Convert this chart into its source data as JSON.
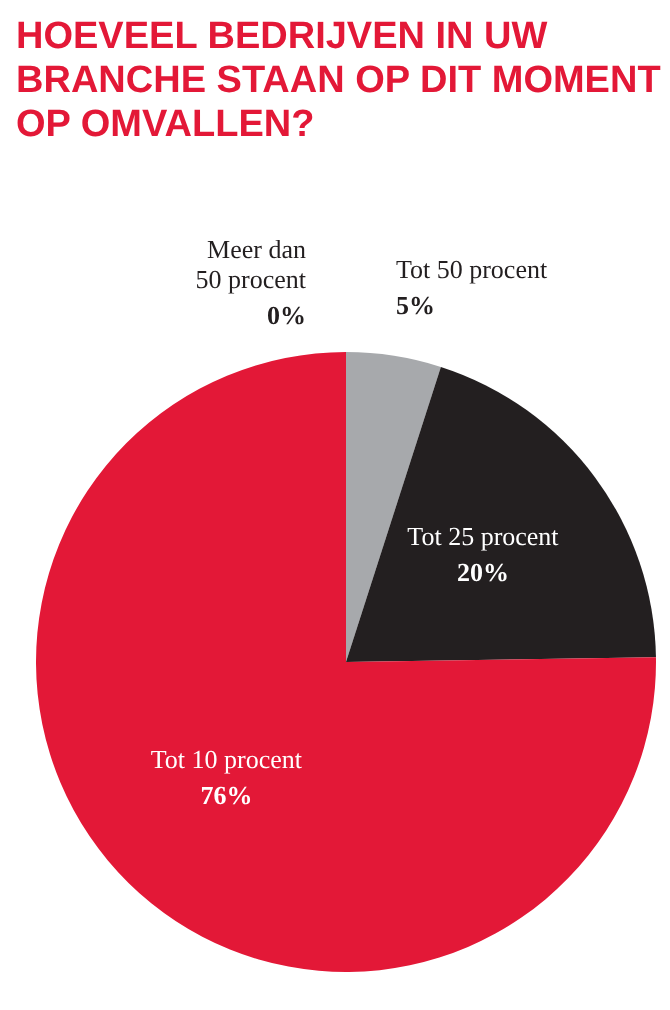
{
  "chart_data": {
    "type": "pie",
    "title": "HOEVEEL BEDRIJVEN IN UW BRANCHE STAAN OP DIT MOMENT OP OMVALLEN?",
    "categories": [
      "Meer dan 50 procent",
      "Tot 50 procent",
      "Tot 25 procent",
      "Tot 10 procent"
    ],
    "values": [
      0,
      5,
      20,
      76
    ],
    "colors": [
      "#6d6e71",
      "#a7a9ac",
      "#231f20",
      "#e31837"
    ],
    "value_labels": [
      "0%",
      "5%",
      "20%",
      "76%"
    ]
  }
}
